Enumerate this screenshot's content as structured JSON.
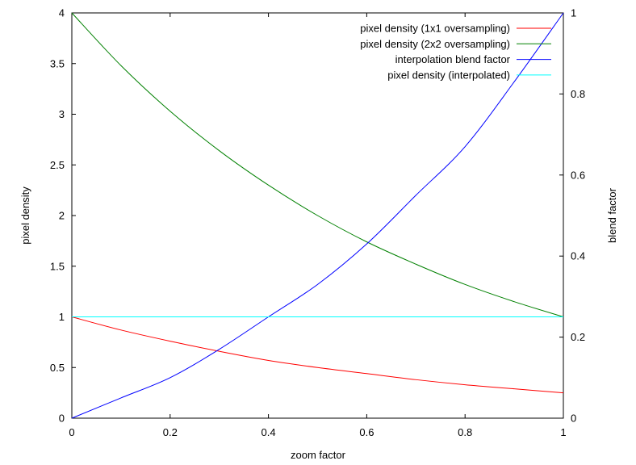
{
  "chart_data": {
    "type": "line",
    "title": "",
    "xlabel": "zoom factor",
    "ylabel": "pixel density",
    "y2label": "blend factor",
    "xlim": [
      0,
      1
    ],
    "ylim": [
      0,
      4
    ],
    "y2lim": [
      0,
      1
    ],
    "grid": false,
    "legend_position": "top-right",
    "x_ticks": [
      "0",
      "0.2",
      "0.4",
      "0.6",
      "0.8",
      "1"
    ],
    "y_ticks": [
      "0",
      "0.5",
      "1",
      "1.5",
      "2",
      "2.5",
      "3",
      "3.5",
      "4"
    ],
    "y2_ticks": [
      "0",
      "0.2",
      "0.4",
      "0.6",
      "0.8",
      "1"
    ],
    "x": [
      0,
      0.1,
      0.2,
      0.3,
      0.4,
      0.5,
      0.6,
      0.7,
      0.8,
      0.9,
      1.0
    ],
    "series": [
      {
        "name": "pixel density (1x1 oversampling)",
        "color": "#ff0000",
        "axis": "left",
        "values": [
          1.0,
          0.87,
          0.76,
          0.66,
          0.57,
          0.5,
          0.44,
          0.38,
          0.33,
          0.29,
          0.25
        ]
      },
      {
        "name": "pixel density (2x2 oversampling)",
        "color": "#008000",
        "axis": "left",
        "values": [
          4.0,
          3.48,
          3.03,
          2.64,
          2.3,
          2.0,
          1.74,
          1.52,
          1.32,
          1.15,
          1.0
        ]
      },
      {
        "name": "interpolation blend factor",
        "color": "#0000ff",
        "axis": "right",
        "values": [
          0.0,
          0.05,
          0.1,
          0.17,
          0.25,
          0.33,
          0.43,
          0.55,
          0.67,
          0.83,
          1.0
        ]
      },
      {
        "name": "pixel density (interpolated)",
        "color": "#00ffff",
        "axis": "left",
        "values": [
          1.0,
          1.0,
          1.0,
          1.0,
          1.0,
          1.0,
          1.0,
          1.0,
          1.0,
          1.0,
          1.0
        ]
      }
    ]
  }
}
